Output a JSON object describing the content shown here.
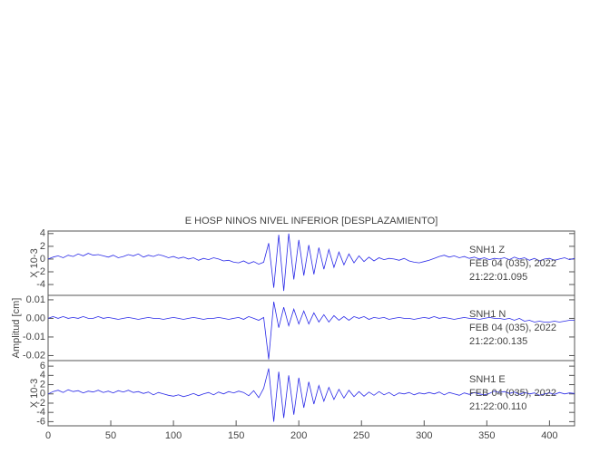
{
  "chart_data": [
    {
      "type": "line",
      "title": "E HOSP NINOS NIVEL INFERIOR [DESPLAZAMIENTO]",
      "ylabel": "X 10-3",
      "annotations": [
        "SNH1  Z",
        "FEB 04 (035), 2022",
        "21:22:01.095"
      ],
      "color": "#2a2ae8",
      "xlim": [
        0,
        420
      ],
      "ylim": [
        -5.7,
        4.4
      ],
      "yticks": [
        -4,
        -2,
        0,
        2,
        4
      ],
      "x": [
        0,
        4,
        8,
        12,
        16,
        20,
        24,
        28,
        32,
        36,
        40,
        44,
        48,
        52,
        56,
        60,
        64,
        68,
        72,
        76,
        80,
        84,
        88,
        92,
        96,
        100,
        104,
        108,
        112,
        116,
        120,
        124,
        128,
        132,
        136,
        140,
        144,
        148,
        152,
        156,
        160,
        164,
        168,
        172,
        176,
        180,
        184,
        188,
        192,
        196,
        200,
        204,
        208,
        212,
        216,
        220,
        224,
        228,
        232,
        236,
        240,
        244,
        248,
        252,
        256,
        260,
        264,
        268,
        272,
        276,
        280,
        284,
        288,
        292,
        296,
        300,
        304,
        308,
        312,
        316,
        320,
        324,
        328,
        332,
        336,
        340,
        344,
        348,
        352,
        356,
        360,
        364,
        368,
        372,
        376,
        380,
        384,
        388,
        392,
        396,
        400,
        404,
        408,
        412,
        416,
        420
      ],
      "values": [
        0,
        0.3,
        0.5,
        0.2,
        0.6,
        0.4,
        0.8,
        0.5,
        0.9,
        0.6,
        0.7,
        0.5,
        0.3,
        0.6,
        0.2,
        0.4,
        0.7,
        0.5,
        0.8,
        0.3,
        0.6,
        0.4,
        0.7,
        0.5,
        0.2,
        0.4,
        0.1,
        0.3,
        0,
        0.2,
        -0.2,
        0.1,
        -0.1,
        0.2,
        0,
        -0.3,
        -0.2,
        -0.5,
        -0.6,
        -0.3,
        -0.7,
        -0.4,
        -0.8,
        -0.5,
        2.5,
        -4.5,
        3.8,
        -5,
        4,
        -3.2,
        3,
        -2.6,
        2.2,
        -2.4,
        1.8,
        -1.6,
        1.5,
        -1.3,
        1.1,
        -0.9,
        0.8,
        -0.6,
        0.5,
        -0.4,
        0.3,
        -0.3,
        0.2,
        -0.1,
        0.1,
        0,
        -0.2,
        0.1,
        -0.3,
        -0.5,
        -0.6,
        -0.4,
        -0.2,
        0.1,
        0.4,
        0.6,
        0.3,
        0.5,
        0.2,
        0.4,
        0.1,
        0.3,
        0,
        0.2,
        -0.1,
        0.1,
        0,
        0.2,
        -0.1,
        0.3,
        0,
        0.2,
        -0.2,
        0.1,
        -0.3,
        0,
        0.1,
        -0.2,
        0,
        0.2,
        -0.1,
        0.1
      ]
    },
    {
      "type": "line",
      "ylabel": "Amplitud [cm]",
      "annotations": [
        "SNH1  N",
        "FEB 04 (035), 2022",
        "21:22:00.135"
      ],
      "color": "#2a2ae8",
      "xlim": [
        0,
        420
      ],
      "ylim": [
        -0.0227,
        0.0124
      ],
      "yticks": [
        -0.02,
        -0.01,
        {
          "value": 0,
          "label": "0.00"
        },
        0.01
      ],
      "x": [
        0,
        4,
        8,
        12,
        16,
        20,
        24,
        28,
        32,
        36,
        40,
        44,
        48,
        52,
        56,
        60,
        64,
        68,
        72,
        76,
        80,
        84,
        88,
        92,
        96,
        100,
        104,
        108,
        112,
        116,
        120,
        124,
        128,
        132,
        136,
        140,
        144,
        148,
        152,
        156,
        160,
        164,
        168,
        172,
        176,
        180,
        184,
        188,
        192,
        196,
        200,
        204,
        208,
        212,
        216,
        220,
        224,
        228,
        232,
        236,
        240,
        244,
        248,
        252,
        256,
        260,
        264,
        268,
        272,
        276,
        280,
        284,
        288,
        292,
        296,
        300,
        304,
        308,
        312,
        316,
        320,
        324,
        328,
        332,
        336,
        340,
        344,
        348,
        352,
        356,
        360,
        364,
        368,
        372,
        376,
        380,
        384,
        388,
        392,
        396,
        400,
        404,
        408,
        412,
        416,
        420
      ],
      "values": [
        0,
        0.001,
        0,
        0.001,
        0,
        0.0005,
        0,
        0.001,
        0,
        0,
        0.001,
        0,
        0.0005,
        0,
        -0.0005,
        0,
        0.0005,
        0,
        -0.0005,
        0,
        0.0005,
        0,
        0,
        -0.0005,
        0,
        0.0005,
        0,
        -0.0005,
        0,
        0.0005,
        0,
        -0.0005,
        0,
        0,
        0.0005,
        0,
        -0.0005,
        0,
        0.0005,
        -0.0005,
        0.001,
        0,
        -0.001,
        0.0005,
        -0.022,
        0.009,
        -0.005,
        0.006,
        -0.004,
        0.005,
        -0.003,
        0.004,
        -0.003,
        0.003,
        -0.002,
        0.002,
        -0.002,
        0.0015,
        -0.001,
        0.001,
        -0.001,
        0.001,
        0,
        0.001,
        -0.0005,
        0.0005,
        0,
        0.0005,
        -0.0005,
        0,
        0.0005,
        0,
        0,
        -0.0005,
        0,
        0.0005,
        0,
        0.001,
        0,
        0.0005,
        0,
        -0.0005,
        0,
        0.0005,
        0,
        0,
        -0.0005,
        0,
        0.0005,
        0,
        0,
        -0.0005,
        0,
        -0.001,
        0,
        -0.0015,
        -0.001,
        -0.002,
        -0.0015,
        -0.002,
        -0.002,
        -0.0015,
        -0.002,
        -0.0015,
        -0.001,
        -0.001
      ]
    },
    {
      "type": "line",
      "ylabel": "X 10-3",
      "annotations": [
        "SNH1  E",
        "FEB 04 (035), 2022",
        "21:22:00.110"
      ],
      "color": "#2a2ae8",
      "xlim": [
        0,
        420
      ],
      "ylim": [
        -6.9,
        7.2
      ],
      "yticks": [
        -6,
        -4,
        -2,
        0,
        2,
        4,
        6
      ],
      "xticks": [
        0,
        50,
        100,
        150,
        200,
        250,
        300,
        350,
        400
      ],
      "x": [
        0,
        4,
        8,
        12,
        16,
        20,
        24,
        28,
        32,
        36,
        40,
        44,
        48,
        52,
        56,
        60,
        64,
        68,
        72,
        76,
        80,
        84,
        88,
        92,
        96,
        100,
        104,
        108,
        112,
        116,
        120,
        124,
        128,
        132,
        136,
        140,
        144,
        148,
        152,
        156,
        160,
        164,
        168,
        172,
        176,
        180,
        184,
        188,
        192,
        196,
        200,
        204,
        208,
        212,
        216,
        220,
        224,
        228,
        232,
        236,
        240,
        244,
        248,
        252,
        256,
        260,
        264,
        268,
        272,
        276,
        280,
        284,
        288,
        292,
        296,
        300,
        304,
        308,
        312,
        316,
        320,
        324,
        328,
        332,
        336,
        340,
        344,
        348,
        352,
        356,
        360,
        364,
        368,
        372,
        376,
        380,
        384,
        388,
        392,
        396,
        400,
        404,
        408,
        412,
        416,
        420
      ],
      "values": [
        0,
        0.5,
        0.8,
        0.3,
        0.9,
        0.5,
        0.7,
        0.2,
        0.6,
        0.4,
        0.8,
        0.3,
        0.6,
        0.2,
        0.7,
        0.4,
        0.8,
        0.3,
        0.5,
        0.1,
        0.4,
        -0.2,
        0.3,
        0,
        -0.3,
        -0.5,
        -0.2,
        -0.6,
        -0.3,
        0.1,
        -0.4,
        0,
        0.3,
        -0.2,
        0.4,
        0,
        0.5,
        0.2,
        0.6,
        0.3,
        -0.4,
        0.7,
        -0.8,
        1.2,
        5.5,
        -6,
        4.8,
        -5.2,
        4,
        -4.5,
        3.5,
        -3,
        2.6,
        -2.2,
        1.8,
        -1.6,
        1.4,
        -1.2,
        1,
        -0.9,
        0.8,
        -0.6,
        0.5,
        -0.5,
        0.4,
        -0.3,
        0.5,
        -0.2,
        0.3,
        -0.4,
        0.2,
        0,
        0.3,
        -0.2,
        0.2,
        0,
        0.3,
        0,
        0.4,
        -0.2,
        0.3,
        0,
        -0.3,
        0.2,
        -0.1,
        0.3,
        0,
        -0.2,
        0.1,
        0.6,
        0.3,
        0.5,
        0.1,
        0.4,
        -0.1,
        0.3,
        0,
        0.2,
        -0.3,
        0,
        0.2,
        -0.1,
        0.3,
        0,
        0.2,
        0.1
      ]
    }
  ]
}
